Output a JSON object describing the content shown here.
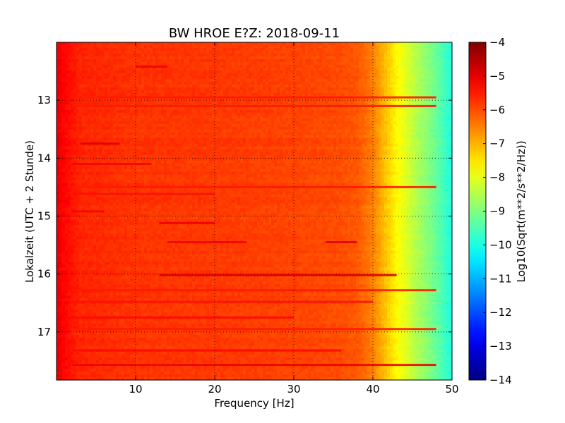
{
  "chart_data": {
    "type": "heatmap",
    "title": "BW HROE E?Z: 2018-09-11",
    "xlabel": "Frequency [Hz]",
    "ylabel": "Lokalzeit (UTC + 2 Stunde)",
    "xlim": [
      0,
      50
    ],
    "ylim": [
      12.0,
      17.83
    ],
    "y_inverted": true,
    "x_ticks": [
      {
        "value": 10,
        "label": "10"
      },
      {
        "value": 20,
        "label": "20"
      },
      {
        "value": 30,
        "label": "30"
      },
      {
        "value": 40,
        "label": "40"
      },
      {
        "value": 50,
        "label": "50"
      }
    ],
    "y_ticks": [
      {
        "value": 13,
        "label": "13"
      },
      {
        "value": 14,
        "label": "14"
      },
      {
        "value": 15,
        "label": "15"
      },
      {
        "value": 16,
        "label": "16"
      },
      {
        "value": 17,
        "label": "17"
      }
    ],
    "grid": true,
    "colormap": "jet",
    "colorbar": {
      "label": "Log10(Sqrt(m**2/s**2/Hz))",
      "vmin": -14,
      "vmax": -4,
      "ticks": [
        {
          "value": -4,
          "label": "−4"
        },
        {
          "value": -5,
          "label": "−5"
        },
        {
          "value": -6,
          "label": "−6"
        },
        {
          "value": -7,
          "label": "−7"
        },
        {
          "value": -8,
          "label": "−8"
        },
        {
          "value": -9,
          "label": "−9"
        },
        {
          "value": -10,
          "label": "−10"
        },
        {
          "value": -11,
          "label": "−11"
        },
        {
          "value": -12,
          "label": "−12"
        },
        {
          "value": -13,
          "label": "−13"
        },
        {
          "value": -14,
          "label": "−14"
        }
      ]
    },
    "frequency_profile": {
      "frequency": [
        0,
        1,
        3,
        10,
        20,
        30,
        36,
        38,
        40,
        41,
        42,
        43,
        44,
        45,
        46,
        47,
        48,
        49,
        50
      ],
      "value": [
        -5.0,
        -5.3,
        -5.6,
        -5.75,
        -5.8,
        -5.9,
        -6.0,
        -6.1,
        -6.5,
        -6.9,
        -7.3,
        -7.7,
        -8.0,
        -8.35,
        -8.65,
        -8.95,
        -9.25,
        -9.6,
        -10.0
      ]
    },
    "horizontal_bands": [
      {
        "time": 12.42,
        "f_start": 10,
        "f_end": 14,
        "value": -5.1
      },
      {
        "time": 12.95,
        "f_start": 2,
        "f_end": 48,
        "value": -5.5
      },
      {
        "time": 13.1,
        "f_start": 2,
        "f_end": 48,
        "value": -5.5
      },
      {
        "time": 13.75,
        "f_start": 3,
        "f_end": 8,
        "value": -4.9
      },
      {
        "time": 14.1,
        "f_start": 2,
        "f_end": 12,
        "value": -5.2
      },
      {
        "time": 14.5,
        "f_start": 2,
        "f_end": 48,
        "value": -5.5
      },
      {
        "time": 14.62,
        "f_start": 2,
        "f_end": 20,
        "value": -5.4
      },
      {
        "time": 14.92,
        "f_start": 2,
        "f_end": 6,
        "value": -5.2
      },
      {
        "time": 15.12,
        "f_start": 13,
        "f_end": 20,
        "value": -5.1
      },
      {
        "time": 15.45,
        "f_start": 14,
        "f_end": 24,
        "value": -5.2
      },
      {
        "time": 15.45,
        "f_start": 34,
        "f_end": 38,
        "value": -5.0
      },
      {
        "time": 16.02,
        "f_start": 13,
        "f_end": 43,
        "value": -4.9
      },
      {
        "time": 16.28,
        "f_start": 2,
        "f_end": 48,
        "value": -5.5
      },
      {
        "time": 16.48,
        "f_start": 2,
        "f_end": 40,
        "value": -5.4
      },
      {
        "time": 16.75,
        "f_start": 1,
        "f_end": 30,
        "value": -5.3
      },
      {
        "time": 16.95,
        "f_start": 2,
        "f_end": 48,
        "value": -5.5
      },
      {
        "time": 17.32,
        "f_start": 2,
        "f_end": 36,
        "value": -5.3
      },
      {
        "time": 17.57,
        "f_start": 2,
        "f_end": 48,
        "value": -5.1
      }
    ]
  }
}
